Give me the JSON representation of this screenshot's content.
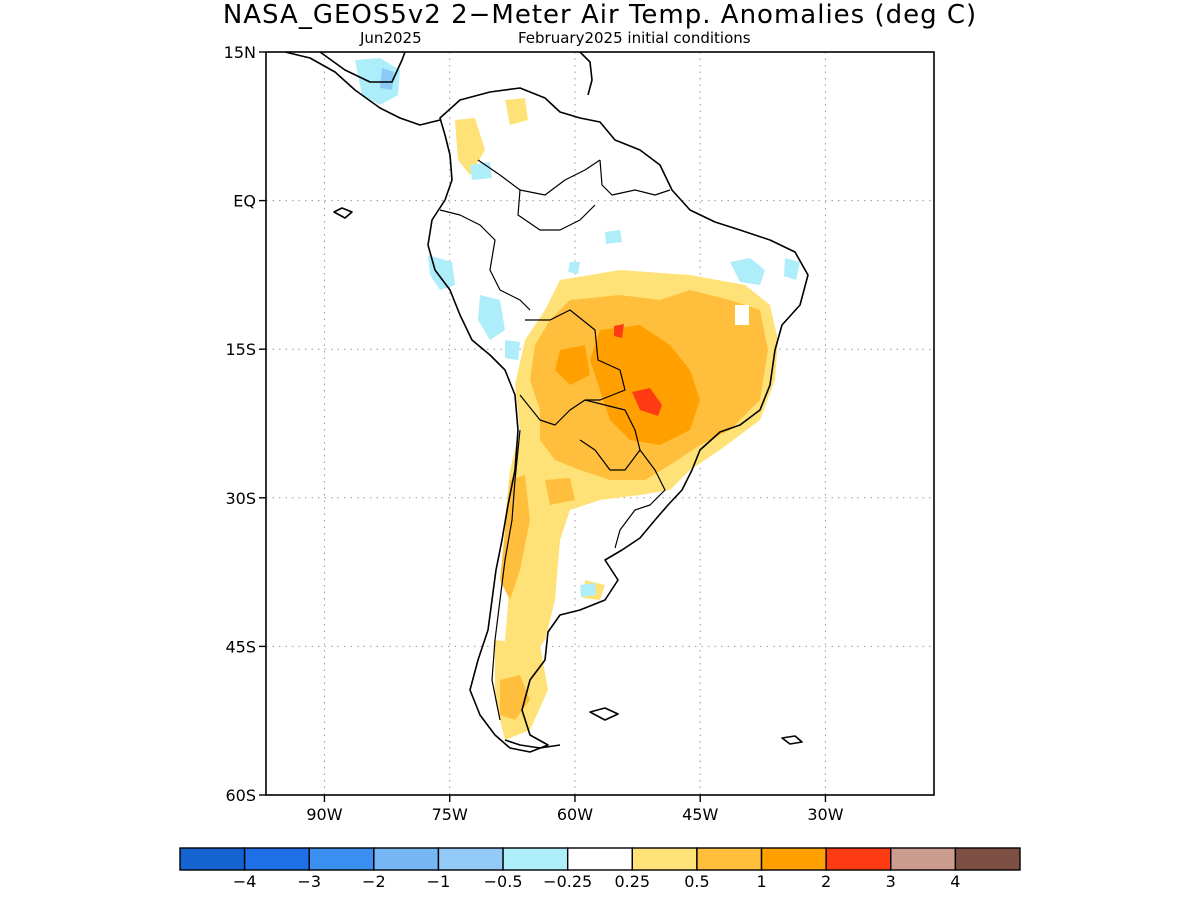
{
  "title": "NASA_GEOS5v2 2−Meter Air Temp. Anomalies (deg C)",
  "subtitle_left": "Jun2025",
  "subtitle_right": "February2025 initial conditions",
  "map": {
    "lon_range": [
      -97,
      -17
    ],
    "lat_range": [
      -60,
      15
    ],
    "lat_ticks": [
      {
        "value": 15,
        "label": "15N"
      },
      {
        "value": 0,
        "label": "EQ"
      },
      {
        "value": -15,
        "label": "15S"
      },
      {
        "value": -30,
        "label": "30S"
      },
      {
        "value": -45,
        "label": "45S"
      },
      {
        "value": -60,
        "label": "60S"
      }
    ],
    "lon_ticks": [
      {
        "value": -90,
        "label": "90W"
      },
      {
        "value": -75,
        "label": "75W"
      },
      {
        "value": -60,
        "label": "60W"
      },
      {
        "value": -45,
        "label": "45W"
      },
      {
        "value": -30,
        "label": "30W"
      }
    ],
    "grid": true,
    "colors": {
      "land_outline": "#000000",
      "warm_light": "#ffe277",
      "warm_mid": "#ffbf3c",
      "warm_strong": "#ffa000",
      "hot": "#ff3b14",
      "cool_light": "#aeeefa",
      "cool_mid": "#8ccaf8"
    }
  },
  "legend": {
    "colors": [
      "#1563d0",
      "#1f6fe8",
      "#3b8ff0",
      "#76b6f5",
      "#93caf8",
      "#aeeefa",
      "#ffffff",
      "#ffe277",
      "#ffbf3c",
      "#ffa000",
      "#ff3b14",
      "#cc9c8f",
      "#7d5043"
    ],
    "labels": [
      "−4",
      "−3",
      "−2",
      "−1",
      "−0.5",
      "−0.25",
      "0.25",
      "0.5",
      "1",
      "2",
      "3",
      "4"
    ]
  }
}
